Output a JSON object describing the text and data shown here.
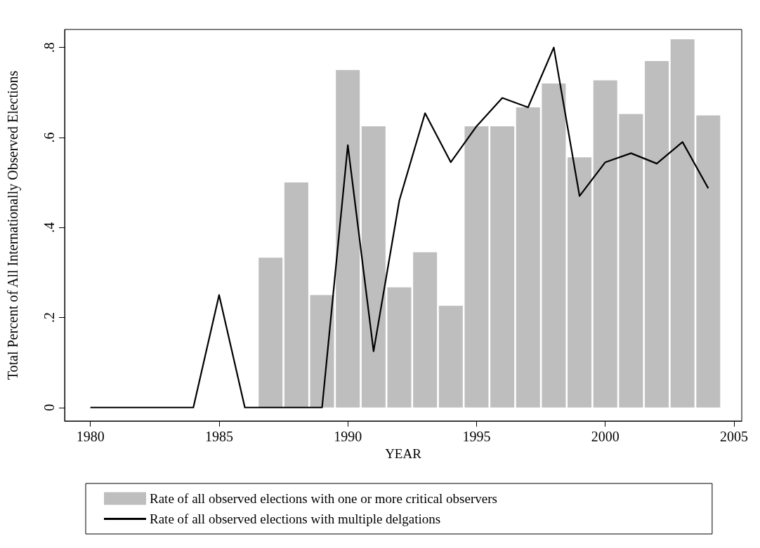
{
  "chart_data": {
    "type": "bar",
    "xlabel": "YEAR",
    "ylabel": "Total Percent of All Internationally Observed Elections",
    "xlim": [
      1979,
      2005.3
    ],
    "xticks": [
      1980,
      1985,
      1990,
      1995,
      2000,
      2005
    ],
    "ylim": [
      -0.03,
      0.84
    ],
    "yticks": [
      {
        "value": 0,
        "label": "0"
      },
      {
        "value": 0.2,
        "label": ".2"
      },
      {
        "value": 0.4,
        "label": ".4"
      },
      {
        "value": 0.6,
        "label": ".6"
      },
      {
        "value": 0.8,
        "label": ".8"
      }
    ],
    "grid": false,
    "legend": "bottom",
    "series": [
      {
        "name": "Rate of all observed elections with one or more critical observers",
        "color": "#bebebe",
        "x": [
          1987,
          1988,
          1989,
          1990,
          1991,
          1992,
          1993,
          1994,
          1995,
          1996,
          1997,
          1998,
          1999,
          2000,
          2001,
          2002,
          2003,
          2004
        ],
        "values": [
          0.333,
          0.5,
          0.25,
          0.75,
          0.625,
          0.267,
          0.345,
          0.226,
          0.625,
          0.625,
          0.667,
          0.72,
          0.556,
          0.727,
          0.652,
          0.77,
          0.818,
          0.649
        ]
      },
      {
        "type": "line",
        "name": "Rate of all observed elections with multiple delgations",
        "color": "#000000",
        "marker": "none",
        "line_style": "solid",
        "x": [
          1980,
          1981,
          1982,
          1983,
          1984,
          1985,
          1986,
          1987,
          1988,
          1989,
          1990,
          1991,
          1992,
          1993,
          1994,
          1995,
          1996,
          1997,
          1998,
          1999,
          2000,
          2001,
          2002,
          2003,
          2004
        ],
        "values": [
          0,
          0,
          0,
          0,
          0,
          0.25,
          0,
          0,
          0,
          0,
          0.583,
          0.125,
          0.46,
          0.654,
          0.545,
          0.625,
          0.688,
          0.667,
          0.8,
          0.47,
          0.545,
          0.565,
          0.542,
          0.59,
          0.487
        ]
      }
    ]
  }
}
